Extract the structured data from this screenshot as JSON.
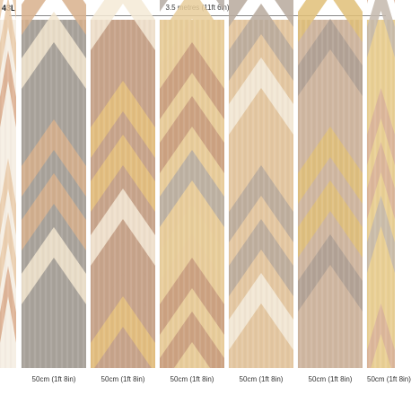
{
  "header": {
    "product_code": "43L",
    "overall_dimension": "3.5 metres (11ft 6in)"
  },
  "panels": [
    {
      "width_label": "",
      "colors": {
        "a": "#e9c9a7",
        "b": "#f6efe4",
        "c": "#d9a98a"
      }
    },
    {
      "width_label": "50cm (1ft 8in)",
      "colors": {
        "a": "#d8b08c",
        "b": "#a8a29a",
        "c": "#f3e6cf"
      }
    },
    {
      "width_label": "50cm (1ft 8in)",
      "colors": {
        "a": "#e6c27d",
        "b": "#c7a38a",
        "c": "#f4ead6"
      }
    },
    {
      "width_label": "50cm (1ft 8in)",
      "colors": {
        "a": "#c79a7c",
        "b": "#e8cc9a",
        "c": "#b5aca3"
      }
    },
    {
      "width_label": "50cm (1ft 8in)",
      "colors": {
        "a": "#b7a99c",
        "b": "#e4c7a1",
        "c": "#f5ecdd"
      }
    },
    {
      "width_label": "50cm (1ft 8in)",
      "colors": {
        "a": "#e1bf78",
        "b": "#cfb6a0",
        "c": "#ad9f93"
      }
    },
    {
      "width_label": "50cm (1ft 8in)",
      "colors": {
        "a": "#d9b29a",
        "b": "#e9cf94",
        "c": "#c4b9ad"
      }
    }
  ]
}
